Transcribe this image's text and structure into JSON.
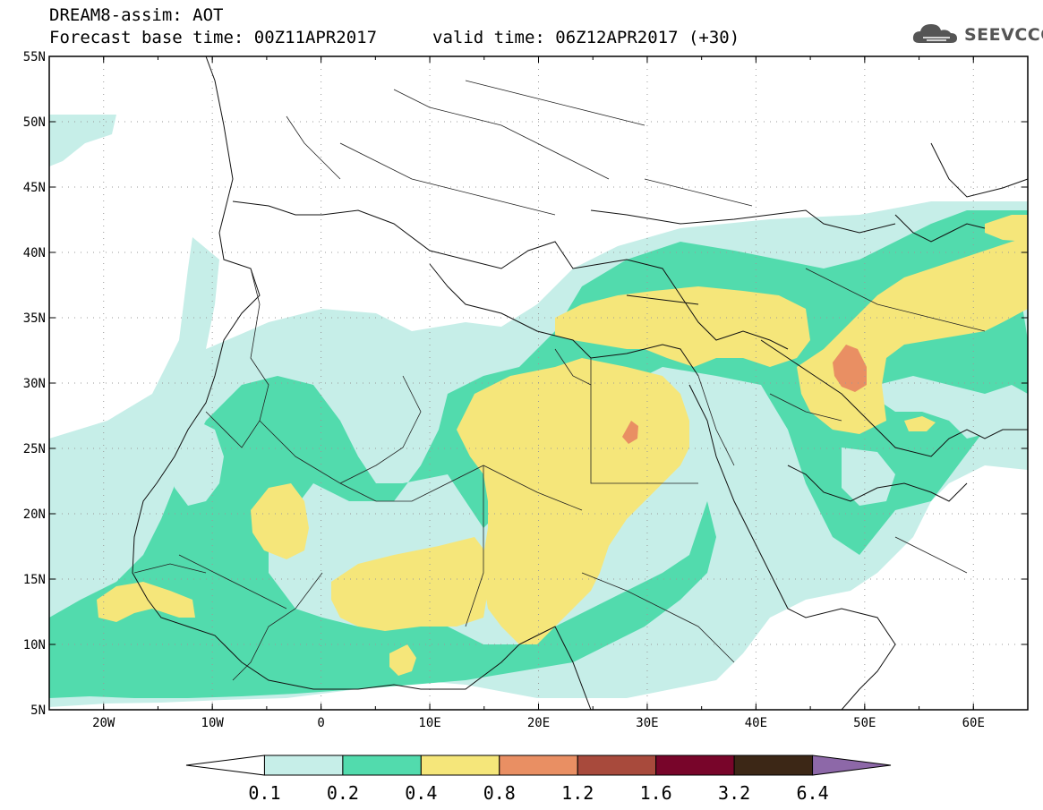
{
  "title": {
    "line1": "DREAM8-assim: AOT",
    "line2_base": "Forecast base time: 00Z11APR2017",
    "line2_valid": "valid time: 06Z12APR2017 (+30)"
  },
  "logo": {
    "text": "SEEVCCC",
    "icon": "cloud-logo-icon"
  },
  "map": {
    "lat_labels": [
      "55N",
      "50N",
      "45N",
      "40N",
      "35N",
      "30N",
      "25N",
      "20N",
      "15N",
      "10N",
      "5N"
    ],
    "lon_labels": [
      "20W",
      "10W",
      "0",
      "10E",
      "20E",
      "30E",
      "40E",
      "50E",
      "60E"
    ],
    "extent": {
      "lon": [
        -25,
        65
      ],
      "lat": [
        5,
        55
      ]
    }
  },
  "colorbar": {
    "labels": [
      "0.1",
      "0.2",
      "0.4",
      "0.8",
      "1.2",
      "1.6",
      "3.2",
      "6.4"
    ],
    "colors": [
      "#ffffff",
      "#c6eee8",
      "#52dbad",
      "#f5e67a",
      "#e98f63",
      "#a84a3c",
      "#78052a",
      "#3c2716",
      "#8d68a8"
    ]
  },
  "colors": {
    "aot_0_1": "#c6eee8",
    "aot_0_2": "#52dbad",
    "aot_0_4": "#f5e67a",
    "aot_0_8": "#e98f63",
    "aot_1_2": "#a84a3c"
  }
}
